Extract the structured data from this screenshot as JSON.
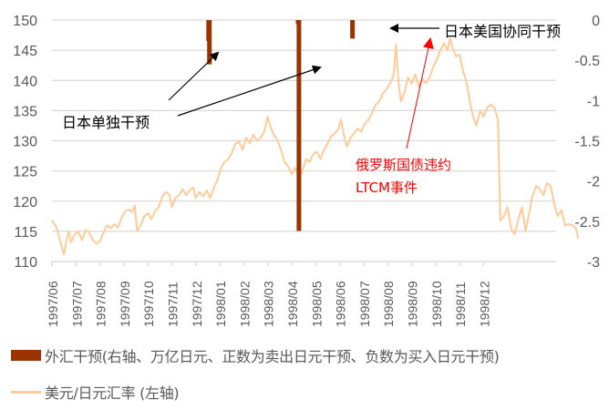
{
  "chart_data": {
    "type": "line+bar",
    "title": "",
    "left_axis": {
      "label": "美元/日元汇率",
      "ticks": [
        110,
        115,
        120,
        125,
        130,
        135,
        140,
        145,
        150
      ],
      "range": [
        110,
        150
      ]
    },
    "right_axis": {
      "label": "外汇干预（万亿日元）",
      "ticks": [
        "0",
        "-0.5",
        "-1",
        "-1.5",
        "-2",
        "-2.5",
        "-3"
      ],
      "range": [
        -3,
        0
      ]
    },
    "x_categories": [
      "1997/06",
      "1997/07",
      "1997/08",
      "1997/09",
      "1997/10",
      "1997/11",
      "1997/12",
      "1998/01",
      "1998/02",
      "1998/03",
      "1998/04",
      "1998/05",
      "1998/06",
      "1998/07",
      "1998/08",
      "1998/09",
      "1998/10",
      "1998/11",
      "1998/12"
    ],
    "grid": true,
    "legend_position": "bottom",
    "series": [
      {
        "name": "外汇干预(右轴、万亿日元、正数为卖出日元干预、负数为买入日元干预)",
        "type": "bar",
        "axis": "right",
        "color": "#993300",
        "points": [
          {
            "date": "1997/12/17",
            "value": -0.26
          },
          {
            "date": "1997/12/18",
            "value": -0.55
          },
          {
            "date": "1998/04/09",
            "value": -0.05
          },
          {
            "date": "1998/04/10",
            "value": -2.62
          },
          {
            "date": "1998/06/17",
            "value": -0.23
          }
        ]
      },
      {
        "name": "美元/日元汇率 (左轴)",
        "type": "line",
        "axis": "left",
        "color": "#FFCC99",
        "points": [
          [
            0.0,
            116.8
          ],
          [
            0.1,
            116.2
          ],
          [
            0.2,
            115.5
          ],
          [
            0.3,
            114.0
          ],
          [
            0.4,
            112.5
          ],
          [
            0.5,
            111.2
          ],
          [
            0.6,
            113.5
          ],
          [
            0.7,
            115.0
          ],
          [
            0.8,
            113.2
          ],
          [
            0.95,
            114.5
          ],
          [
            1.1,
            115.0
          ],
          [
            1.25,
            113.5
          ],
          [
            1.4,
            115.2
          ],
          [
            1.55,
            114.8
          ],
          [
            1.7,
            113.6
          ],
          [
            1.85,
            113.0
          ],
          [
            2.0,
            113.3
          ],
          [
            2.15,
            114.8
          ],
          [
            2.3,
            116.0
          ],
          [
            2.45,
            115.5
          ],
          [
            2.6,
            116.2
          ],
          [
            2.75,
            115.6
          ],
          [
            2.9,
            117.2
          ],
          [
            3.05,
            118.3
          ],
          [
            3.2,
            118.6
          ],
          [
            3.35,
            118.2
          ],
          [
            3.45,
            119.3
          ],
          [
            3.55,
            115.0
          ],
          [
            3.7,
            116.0
          ],
          [
            3.85,
            117.5
          ],
          [
            4.0,
            118.0
          ],
          [
            4.15,
            117.0
          ],
          [
            4.3,
            118.4
          ],
          [
            4.45,
            119.0
          ],
          [
            4.6,
            120.8
          ],
          [
            4.75,
            121.5
          ],
          [
            4.9,
            121.0
          ],
          [
            5.0,
            119.0
          ],
          [
            5.15,
            120.5
          ],
          [
            5.3,
            121.0
          ],
          [
            5.45,
            122.0
          ],
          [
            5.6,
            121.0
          ],
          [
            5.75,
            121.8
          ],
          [
            5.9,
            122.2
          ],
          [
            6.0,
            120.5
          ],
          [
            6.15,
            121.5
          ],
          [
            6.3,
            120.8
          ],
          [
            6.45,
            121.8
          ],
          [
            6.6,
            120.5
          ],
          [
            6.75,
            122.2
          ],
          [
            6.9,
            123.5
          ],
          [
            7.05,
            125.5
          ],
          [
            7.2,
            126.5
          ],
          [
            7.35,
            127.0
          ],
          [
            7.5,
            128.0
          ],
          [
            7.65,
            129.5
          ],
          [
            7.8,
            129.8
          ],
          [
            7.95,
            128.5
          ],
          [
            8.1,
            130.5
          ],
          [
            8.25,
            129.6
          ],
          [
            8.4,
            131.0
          ],
          [
            8.55,
            130.0
          ],
          [
            8.7,
            130.5
          ],
          [
            8.85,
            131.5
          ],
          [
            9.0,
            134.0
          ],
          [
            9.1,
            132.5
          ],
          [
            9.25,
            131.0
          ],
          [
            9.4,
            130.2
          ],
          [
            9.55,
            128.5
          ],
          [
            9.7,
            126.5
          ],
          [
            9.85,
            125.8
          ],
          [
            10.0,
            124.5
          ],
          [
            10.15,
            125.5
          ],
          [
            10.3,
            124.0
          ],
          [
            10.45,
            125.0
          ],
          [
            10.6,
            127.0
          ],
          [
            10.75,
            126.5
          ],
          [
            10.9,
            127.8
          ],
          [
            11.05,
            128.2
          ],
          [
            11.2,
            127.0
          ],
          [
            11.35,
            128.6
          ],
          [
            11.5,
            129.5
          ],
          [
            11.65,
            130.8
          ],
          [
            11.8,
            131.2
          ],
          [
            11.95,
            132.0
          ],
          [
            12.05,
            133.5
          ],
          [
            12.15,
            131.5
          ],
          [
            12.3,
            129.0
          ],
          [
            12.45,
            130.5
          ],
          [
            12.6,
            131.2
          ],
          [
            12.75,
            132.0
          ],
          [
            12.9,
            131.5
          ],
          [
            13.05,
            132.8
          ],
          [
            13.2,
            133.5
          ],
          [
            13.35,
            134.6
          ],
          [
            13.5,
            136.0
          ],
          [
            13.65,
            136.5
          ],
          [
            13.8,
            137.8
          ],
          [
            13.95,
            138.5
          ],
          [
            14.1,
            139.5
          ],
          [
            14.25,
            140.8
          ],
          [
            14.35,
            146.0
          ],
          [
            14.45,
            140.0
          ],
          [
            14.55,
            136.5
          ],
          [
            14.7,
            138.0
          ],
          [
            14.85,
            140.5
          ],
          [
            15.0,
            139.5
          ],
          [
            15.15,
            141.0
          ],
          [
            15.3,
            139.0
          ],
          [
            15.45,
            140.2
          ],
          [
            15.6,
            139.5
          ],
          [
            15.75,
            140.5
          ],
          [
            15.9,
            142.2
          ],
          [
            16.05,
            143.5
          ],
          [
            16.2,
            145.0
          ],
          [
            16.35,
            146.2
          ],
          [
            16.5,
            145.0
          ],
          [
            16.6,
            147.0
          ],
          [
            16.7,
            145.5
          ],
          [
            16.85,
            144.0
          ],
          [
            17.0,
            144.2
          ],
          [
            17.15,
            141.5
          ],
          [
            17.3,
            139.5
          ],
          [
            17.45,
            136.0
          ],
          [
            17.6,
            133.5
          ],
          [
            17.7,
            132.5
          ],
          [
            17.85,
            135.0
          ],
          [
            18.0,
            134.0
          ],
          [
            18.15,
            135.5
          ],
          [
            18.3,
            136.0
          ],
          [
            18.45,
            135.5
          ],
          [
            18.6,
            133.5
          ],
          [
            18.7,
            116.8
          ],
          [
            18.85,
            117.5
          ],
          [
            19.0,
            119.0
          ],
          [
            19.15,
            115.5
          ],
          [
            19.3,
            114.5
          ],
          [
            19.45,
            117.0
          ],
          [
            19.6,
            119.0
          ],
          [
            19.75,
            115.0
          ],
          [
            19.9,
            118.0
          ],
          [
            20.05,
            121.0
          ],
          [
            20.2,
            122.5
          ],
          [
            20.35,
            122.0
          ],
          [
            20.5,
            121.0
          ],
          [
            20.65,
            123.0
          ],
          [
            20.8,
            122.5
          ],
          [
            20.95,
            119.5
          ],
          [
            21.1,
            117.5
          ],
          [
            21.25,
            118.5
          ],
          [
            21.4,
            116.0
          ],
          [
            21.55,
            116.2
          ],
          [
            21.7,
            116.0
          ],
          [
            21.85,
            115.5
          ],
          [
            21.95,
            113.8
          ]
        ]
      }
    ],
    "annotations": [
      {
        "text": "日本单独干预",
        "color": "#000000",
        "arrows_to": [
          "1997/12 intervention",
          "1998/04 intervention"
        ]
      },
      {
        "text": "日本美国协同干预",
        "color": "#000000",
        "arrows_to": [
          "1998/06 intervention"
        ]
      },
      {
        "text": "俄罗斯国债违约",
        "color": "#FF0000"
      },
      {
        "text": "LTCM事件",
        "color": "#FF0000",
        "arrows_to": [
          "1998/08 peak ~147"
        ]
      }
    ]
  },
  "legend": {
    "bar_label": "外汇干预(右轴、万亿日元、正数为卖出日元干预、负数为买入日元干预)",
    "line_label": "美元/日元汇率 (左轴)"
  },
  "colors": {
    "bar": "#993300",
    "line": "#FFCC99",
    "grid": "#D9D9D9",
    "axis_text": "#595959",
    "annotation_red": "#FF0000"
  }
}
